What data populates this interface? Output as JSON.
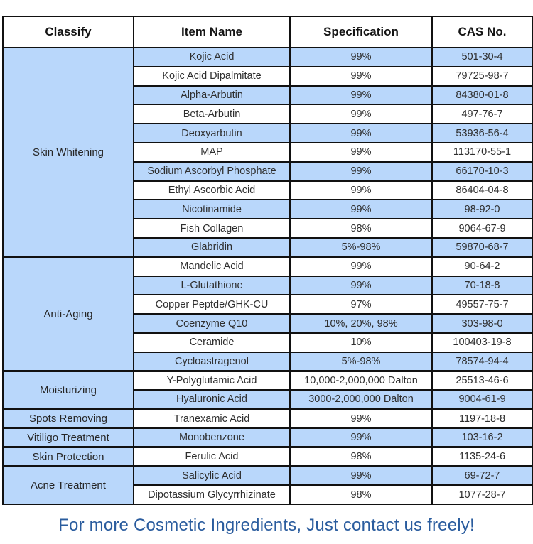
{
  "table": {
    "headers": [
      "Classify",
      "Item Name",
      "Specification",
      "CAS No."
    ],
    "sections": [
      {
        "classify": "Skin Whitening",
        "rows": [
          {
            "item": "Kojic Acid",
            "spec": "99%",
            "cas": "501-30-4"
          },
          {
            "item": "Kojic Acid Dipalmitate",
            "spec": "99%",
            "cas": "79725-98-7"
          },
          {
            "item": "Alpha-Arbutin",
            "spec": "99%",
            "cas": "84380-01-8"
          },
          {
            "item": "Beta-Arbutin",
            "spec": "99%",
            "cas": "497-76-7"
          },
          {
            "item": "Deoxyarbutin",
            "spec": "99%",
            "cas": "53936-56-4"
          },
          {
            "item": "MAP",
            "spec": "99%",
            "cas": "113170-55-1"
          },
          {
            "item": "Sodium Ascorbyl Phosphate",
            "spec": "99%",
            "cas": "66170-10-3"
          },
          {
            "item": "Ethyl Ascorbic Acid",
            "spec": "99%",
            "cas": "86404-04-8"
          },
          {
            "item": "Nicotinamide",
            "spec": "99%",
            "cas": "98-92-0"
          },
          {
            "item": "Fish Collagen",
            "spec": "98%",
            "cas": "9064-67-9"
          },
          {
            "item": "Glabridin",
            "spec": "5%-98%",
            "cas": "59870-68-7"
          }
        ]
      },
      {
        "classify": "Anti-Aging",
        "rows": [
          {
            "item": "Mandelic Acid",
            "spec": "99%",
            "cas": "90-64-2"
          },
          {
            "item": "L-Glutathione",
            "spec": "99%",
            "cas": "70-18-8"
          },
          {
            "item": "Copper Peptde/GHK-CU",
            "spec": "97%",
            "cas": "49557-75-7"
          },
          {
            "item": "Coenzyme Q10",
            "spec": "10%, 20%, 98%",
            "cas": "303-98-0"
          },
          {
            "item": "Ceramide",
            "spec": "10%",
            "cas": "100403-19-8"
          },
          {
            "item": "Cycloastragenol",
            "spec": "5%-98%",
            "cas": "78574-94-4"
          }
        ]
      },
      {
        "classify": "Moisturizing",
        "rows": [
          {
            "item": "Y-Polyglutamic Acid",
            "spec": "10,000-2,000,000 Dalton",
            "cas": "25513-46-6"
          },
          {
            "item": "Hyaluronic Acid",
            "spec": "3000-2,000,000 Dalton",
            "cas": "9004-61-9"
          }
        ]
      },
      {
        "classify": "Spots Removing",
        "rows": [
          {
            "item": "Tranexamic Acid",
            "spec": "99%",
            "cas": "1197-18-8"
          }
        ]
      },
      {
        "classify": "Vitiligo Treatment",
        "rows": [
          {
            "item": "Monobenzone",
            "spec": "99%",
            "cas": "103-16-2"
          }
        ]
      },
      {
        "classify": "Skin Protection",
        "rows": [
          {
            "item": "Ferulic Acid",
            "spec": "98%",
            "cas": "1135-24-6"
          }
        ]
      },
      {
        "classify": "Acne Treatment",
        "rows": [
          {
            "item": "Salicylic Acid",
            "spec": "99%",
            "cas": "69-72-7"
          },
          {
            "item": "Dipotassium Glycyrrhizinate",
            "spec": "98%",
            "cas": "1077-28-7"
          }
        ]
      }
    ]
  },
  "footer": {
    "text": "For more Cosmetic Ingredients, Just contact us freely!"
  },
  "colors": {
    "row_blue": "#b9d7fb",
    "row_white": "#ffffff",
    "border": "#111111",
    "cell_text": "#2e2e2e",
    "footer_text": "#2a5c9e"
  }
}
